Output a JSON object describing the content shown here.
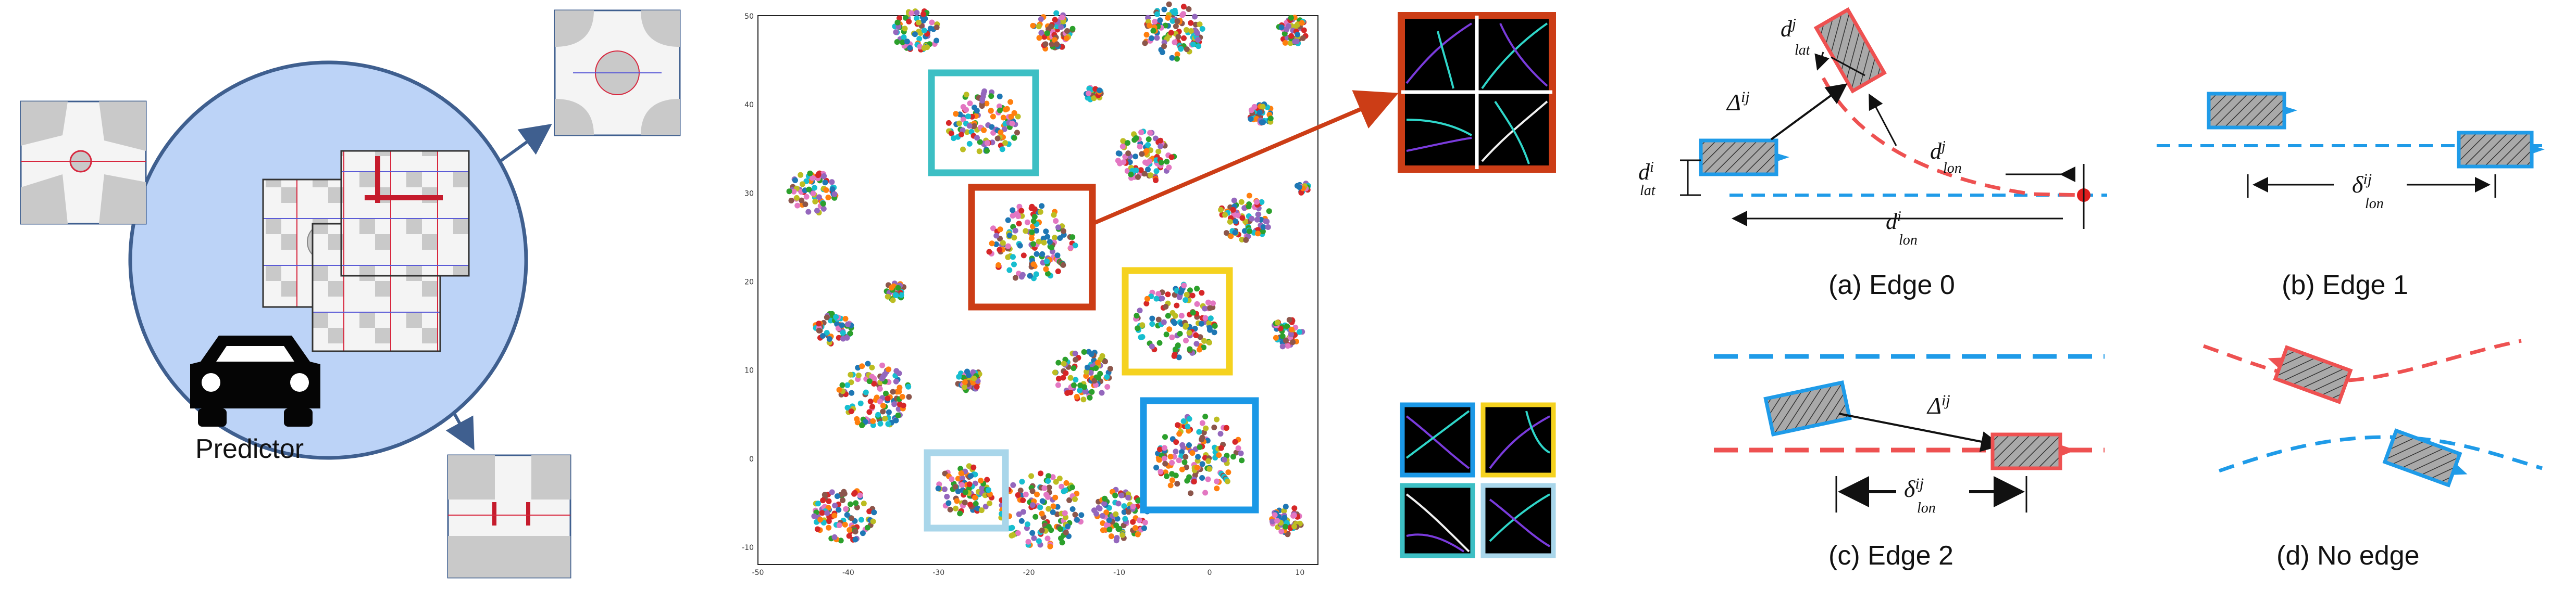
{
  "panel1": {
    "label": "Predictor"
  },
  "scatter": {
    "x_ticks": [
      "-50",
      "-40",
      "-30",
      "-20",
      "-10",
      "0",
      "10"
    ],
    "y_ticks": [
      "50",
      "40",
      "30",
      "20",
      "10",
      "0",
      "-10"
    ]
  },
  "captions": {
    "edge0": "(a) Edge 0",
    "edge1": "(b) Edge 1",
    "edge2": "(c) Edge 2",
    "noedge": "(d) No edge"
  },
  "symbols": {
    "delta": "Δ",
    "delta_sup": "ij",
    "d": "d",
    "lat": "lat",
    "lon": "lon",
    "sup_i": "i",
    "sup_j": "j",
    "sup_ij": "ij",
    "small_delta": "δ"
  },
  "colors": {
    "blue": "#1f9be8",
    "red": "#ee5151",
    "cyan_box": "#3dbfc4",
    "orange_box": "#cc3d16",
    "yellow_box": "#f5d21f",
    "bright_blue_box": "#1b98e6",
    "light_blue_box": "#a9d6ea",
    "circle_fill": "#bcd3f7",
    "circle_stroke": "#3f5f8f"
  }
}
